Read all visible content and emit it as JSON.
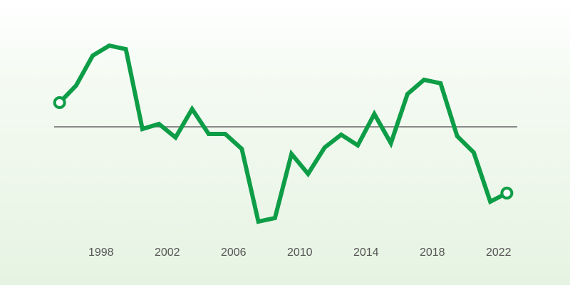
{
  "chart_data": {
    "type": "line",
    "x": [
      1995.5,
      1996.5,
      1997.5,
      1998.5,
      1999.5,
      2000.5,
      2001.5,
      2002.5,
      2003.5,
      2004.5,
      2005.5,
      2006.5,
      2007.5,
      2008.5,
      2009.5,
      2010.5,
      2011.5,
      2012.5,
      2013.5,
      2014.5,
      2015.5,
      2016.5,
      2017.5,
      2018.5,
      2019.5,
      2020.5,
      2021.5,
      2022.5
    ],
    "values": [
      34,
      58,
      100,
      114,
      109,
      -3,
      4,
      -15,
      25,
      -10,
      -10,
      -31,
      -133,
      -128,
      -38,
      -66,
      -29,
      -11,
      -26,
      18,
      -23,
      46,
      66,
      61,
      -13,
      -36,
      -105,
      -93
    ],
    "color": "#0e9d47",
    "reference_line": 0,
    "xlim": [
      1995,
      2023
    ],
    "xticks": [
      1998,
      2002,
      2006,
      2010,
      2014,
      2018,
      2022
    ],
    "ylim": [
      -152,
      138
    ]
  }
}
